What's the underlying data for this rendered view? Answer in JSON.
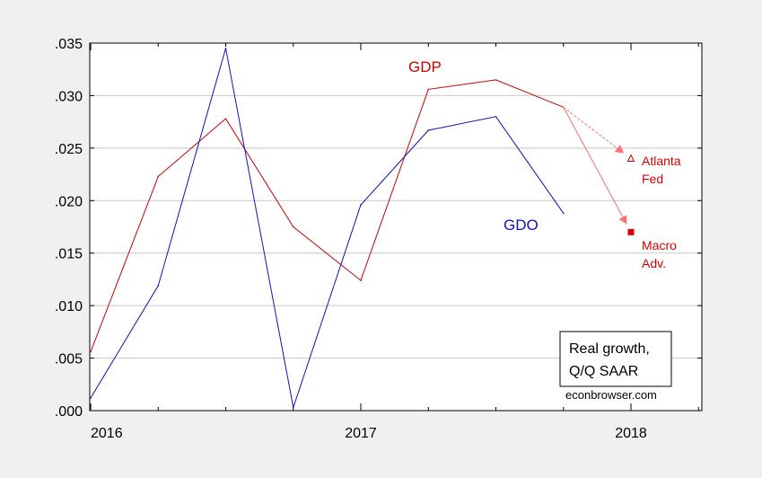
{
  "chart_data": {
    "type": "line",
    "x_dates": [
      "2016Q1",
      "2016Q2",
      "2016Q3",
      "2016Q4",
      "2017Q1",
      "2017Q2",
      "2017Q3",
      "2017Q4",
      "2018Q1"
    ],
    "x_ticks": [
      "2016",
      "2017",
      "2018"
    ],
    "ylim": [
      0,
      0.035
    ],
    "y_ticks": [
      ".000",
      ".005",
      ".010",
      ".015",
      ".020",
      ".025",
      ".030",
      ".035"
    ],
    "grid": true,
    "series": [
      {
        "name": "GDP",
        "color": "#cc0000",
        "x": [
          "2016Q1",
          "2016Q2",
          "2016Q3",
          "2016Q4",
          "2017Q1",
          "2017Q2",
          "2017Q3",
          "2017Q4"
        ],
        "values": [
          0.0056,
          0.0223,
          0.0278,
          0.0175,
          0.0124,
          0.0306,
          0.0315,
          0.0289
        ]
      },
      {
        "name": "GDO",
        "color": "#1010c0",
        "x": [
          "2016Q1",
          "2016Q2",
          "2016Q3",
          "2016Q4",
          "2017Q1",
          "2017Q2",
          "2017Q3",
          "2017Q4"
        ],
        "values": [
          0.0012,
          0.0119,
          0.0345,
          0.0003,
          0.0196,
          0.0267,
          0.028,
          0.0188
        ]
      }
    ],
    "forecasts": [
      {
        "label_line1": "Atlanta",
        "label_line2": "Fed",
        "x": "2018Q1",
        "value": 0.024,
        "marker": "open-triangle",
        "color": "#cc0000"
      },
      {
        "label_line1": "Macro",
        "label_line2": "Adv.",
        "x": "2018Q1",
        "value": 0.017,
        "marker": "filled-square",
        "color": "#dd0000"
      }
    ],
    "legend": {
      "line1": "Real growth,",
      "line2": "Q/Q SAAR",
      "source": "econbrowser.com",
      "position": "bottom-right"
    }
  }
}
